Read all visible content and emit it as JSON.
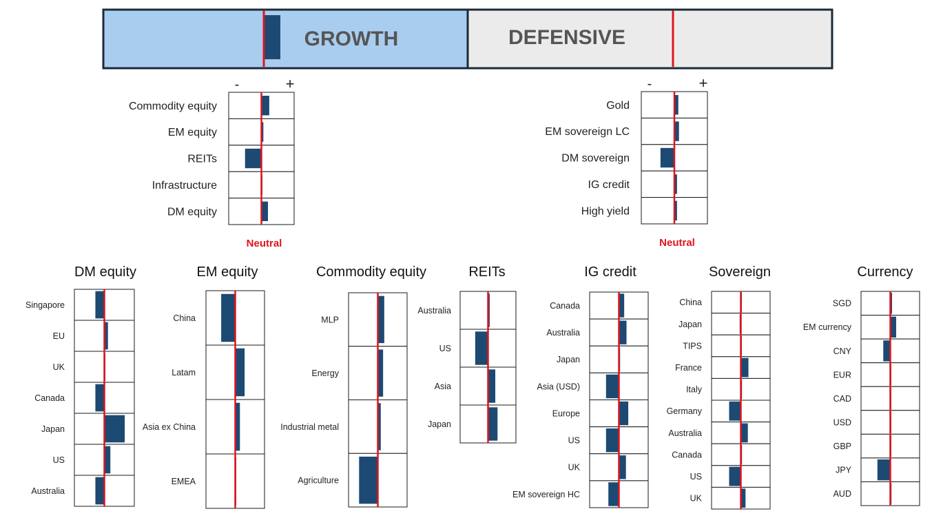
{
  "banner": {
    "growth_label": "GROWTH",
    "defensive_label": "DEFENSIVE",
    "growth_fill": "#a9cdef",
    "defensive_fill": "#ebebeb",
    "growth_value": 2
  },
  "colors": {
    "bar": "#1c4a72",
    "neutral_line": "#e0141c",
    "border": "#1a1a1a",
    "text": "#222222",
    "title_text": "#111111",
    "banner_text": "#555555"
  },
  "neutral_label": "Neutral",
  "scale_minus": "-",
  "scale_plus": "+",
  "chart_data": [
    {
      "id": "growth",
      "type": "bar",
      "orientation": "horizontal",
      "xlim": [
        -5,
        5
      ],
      "categories": [
        "Commodity equity",
        "EM equity",
        "REITs",
        "Infrastructure",
        "DM equity"
      ],
      "values": [
        1.2,
        0.3,
        -2.5,
        0,
        1
      ]
    },
    {
      "id": "defensive",
      "type": "bar",
      "orientation": "horizontal",
      "xlim": [
        -5,
        5
      ],
      "categories": [
        "Gold",
        "EM sovereign LC",
        "DM sovereign",
        "IG credit",
        "High yield"
      ],
      "values": [
        0.6,
        0.7,
        -2.1,
        0.4,
        0.4
      ]
    },
    {
      "id": "dm-equity",
      "type": "bar",
      "orientation": "horizontal",
      "title": "DM equity",
      "xlim": [
        -5,
        5
      ],
      "categories": [
        "Singapore",
        "EU",
        "UK",
        "Canada",
        "Japan",
        "US",
        "Australia"
      ],
      "values": [
        -1.5,
        0.6,
        0,
        -1.5,
        3.4,
        1,
        -1.5
      ]
    },
    {
      "id": "em-equity",
      "type": "bar",
      "orientation": "horizontal",
      "title": "EM equity",
      "xlim": [
        -5,
        5
      ],
      "categories": [
        "China",
        "Latam",
        "Asia ex China",
        "EMEA"
      ],
      "values": [
        -2.4,
        1.6,
        0.8,
        0
      ]
    },
    {
      "id": "commodity-equity",
      "type": "bar",
      "orientation": "horizontal",
      "title": "Commodity equity",
      "xlim": [
        -5,
        5
      ],
      "categories": [
        "MLP",
        "Energy",
        "Industrial metal",
        "Agriculture"
      ],
      "values": [
        1.1,
        0.9,
        0.5,
        -3.2
      ]
    },
    {
      "id": "reits",
      "type": "bar",
      "orientation": "horizontal",
      "title": "REITs",
      "xlim": [
        -5,
        5
      ],
      "categories": [
        "Australia",
        "US",
        "Asia",
        "Japan"
      ],
      "values": [
        0.3,
        -2.3,
        1.3,
        1.7
      ]
    },
    {
      "id": "ig-credit",
      "type": "bar",
      "orientation": "horizontal",
      "title": "IG credit",
      "xlim": [
        -5,
        5
      ],
      "categories": [
        "Canada",
        "Australia",
        "Japan",
        "Asia (USD)",
        "Europe",
        "US",
        "UK",
        "EM sovereign HC"
      ],
      "values": [
        0.9,
        1.3,
        0.2,
        -2.2,
        1.6,
        -2.2,
        1.2,
        -1.8
      ]
    },
    {
      "id": "sovereign",
      "type": "bar",
      "orientation": "horizontal",
      "title": "Sovereign",
      "xlim": [
        -5,
        5
      ],
      "categories": [
        "China",
        "Japan",
        "TIPS",
        "France",
        "Italy",
        "Germany",
        "Australia",
        "Canada",
        "US",
        "UK"
      ],
      "values": [
        0,
        -0.2,
        0,
        1.3,
        0.2,
        -2,
        1.2,
        0.2,
        -2,
        0.8
      ]
    },
    {
      "id": "currency",
      "type": "bar",
      "orientation": "horizontal",
      "title": "Currency",
      "xlim": [
        -5,
        5
      ],
      "categories": [
        "SGD",
        "EM currency",
        "CNY",
        "EUR",
        "CAD",
        "USD",
        "GBP",
        "JPY",
        "AUD"
      ],
      "values": [
        0.3,
        1,
        -1.2,
        0,
        0,
        0,
        0,
        -2.2,
        0.2
      ]
    }
  ]
}
